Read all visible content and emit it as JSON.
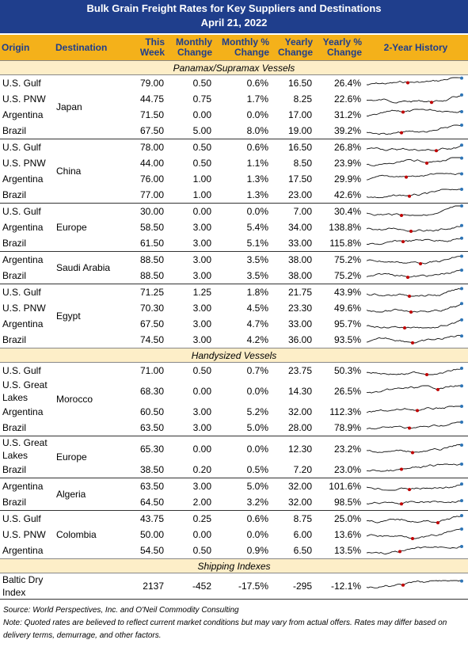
{
  "title": "Bulk Grain Freight Rates for Key Suppliers and Destinations",
  "date": "April 21, 2022",
  "columns": [
    "Origin",
    "Destination",
    "This Week",
    "Monthly Change",
    "Monthly % Change",
    "Yearly Change",
    "Yearly % Change",
    "2-Year History"
  ],
  "sections": [
    {
      "title": "Panamax/Supramax Vessels",
      "groups": [
        {
          "destination": "Japan",
          "rows": [
            [
              "U.S. Gulf",
              "79.00",
              "0.50",
              "0.6%",
              "16.50",
              "26.4%"
            ],
            [
              "U.S. PNW",
              "44.75",
              "0.75",
              "1.7%",
              "8.25",
              "22.6%"
            ],
            [
              "Argentina",
              "71.50",
              "0.00",
              "0.0%",
              "17.00",
              "31.2%"
            ],
            [
              "Brazil",
              "67.50",
              "5.00",
              "8.0%",
              "19.00",
              "39.2%"
            ]
          ]
        },
        {
          "destination": "China",
          "rows": [
            [
              "U.S. Gulf",
              "78.00",
              "0.50",
              "0.6%",
              "16.50",
              "26.8%"
            ],
            [
              "U.S. PNW",
              "44.00",
              "0.50",
              "1.1%",
              "8.50",
              "23.9%"
            ],
            [
              "Argentina",
              "76.00",
              "1.00",
              "1.3%",
              "17.50",
              "29.9%"
            ],
            [
              "Brazil",
              "77.00",
              "1.00",
              "1.3%",
              "23.00",
              "42.6%"
            ]
          ]
        },
        {
          "destination": "Europe",
          "rows": [
            [
              "U.S. Gulf",
              "30.00",
              "0.00",
              "0.0%",
              "7.00",
              "30.4%"
            ],
            [
              "Argentina",
              "58.50",
              "3.00",
              "5.4%",
              "34.00",
              "138.8%"
            ],
            [
              "Brazil",
              "61.50",
              "3.00",
              "5.1%",
              "33.00",
              "115.8%"
            ]
          ]
        },
        {
          "destination": "Saudi Arabia",
          "rows": [
            [
              "Argentina",
              "88.50",
              "3.00",
              "3.5%",
              "38.00",
              "75.2%"
            ],
            [
              "Brazil",
              "88.50",
              "3.00",
              "3.5%",
              "38.00",
              "75.2%"
            ]
          ]
        },
        {
          "destination": "Egypt",
          "rows": [
            [
              "U.S. Gulf",
              "71.25",
              "1.25",
              "1.8%",
              "21.75",
              "43.9%"
            ],
            [
              "U.S. PNW",
              "70.30",
              "3.00",
              "4.5%",
              "23.30",
              "49.6%"
            ],
            [
              "Argentina",
              "67.50",
              "3.00",
              "4.7%",
              "33.00",
              "95.7%"
            ],
            [
              "Brazil",
              "74.50",
              "3.00",
              "4.2%",
              "36.00",
              "93.5%"
            ]
          ]
        }
      ]
    },
    {
      "title": "Handysized Vessels",
      "groups": [
        {
          "destination": "Morocco",
          "rows": [
            [
              "U.S. Gulf",
              "71.00",
              "0.50",
              "0.7%",
              "23.75",
              "50.3%"
            ],
            [
              "U.S. Great Lakes",
              "68.30",
              "0.00",
              "0.0%",
              "14.30",
              "26.5%"
            ],
            [
              "Argentina",
              "60.50",
              "3.00",
              "5.2%",
              "32.00",
              "112.3%"
            ],
            [
              "Brazil",
              "63.50",
              "3.00",
              "5.0%",
              "28.00",
              "78.9%"
            ]
          ]
        },
        {
          "destination": "Europe",
          "rows": [
            [
              "U.S. Great Lakes",
              "65.30",
              "0.00",
              "0.0%",
              "12.30",
              "23.2%"
            ],
            [
              "Brazil",
              "38.50",
              "0.20",
              "0.5%",
              "7.20",
              "23.0%"
            ]
          ]
        },
        {
          "destination": "Algeria",
          "rows": [
            [
              "Argentina",
              "63.50",
              "3.00",
              "5.0%",
              "32.00",
              "101.6%"
            ],
            [
              "Brazil",
              "64.50",
              "2.00",
              "3.2%",
              "32.00",
              "98.5%"
            ]
          ]
        },
        {
          "destination": "Colombia",
          "rows": [
            [
              "U.S. Gulf",
              "43.75",
              "0.25",
              "0.6%",
              "8.75",
              "25.0%"
            ],
            [
              "U.S. PNW",
              "50.00",
              "0.00",
              "0.0%",
              "6.00",
              "13.6%"
            ],
            [
              "Argentina",
              "54.50",
              "0.50",
              "0.9%",
              "6.50",
              "13.5%"
            ]
          ]
        }
      ]
    },
    {
      "title": "Shipping Indexes",
      "groups": [
        {
          "rows": [
            [
              "Baltic Dry Index",
              "2137",
              "-452",
              "-17.5%",
              "-295",
              "-12.1%"
            ]
          ]
        }
      ]
    }
  ],
  "source": "Source: World Perspectives, Inc. and O'Neil Commodity Consulting",
  "note": "Note: Quoted rates are believed to reflect current market conditions but may vary from actual offers. Rates may differ based on delivery terms, demurrage, and other factors."
}
